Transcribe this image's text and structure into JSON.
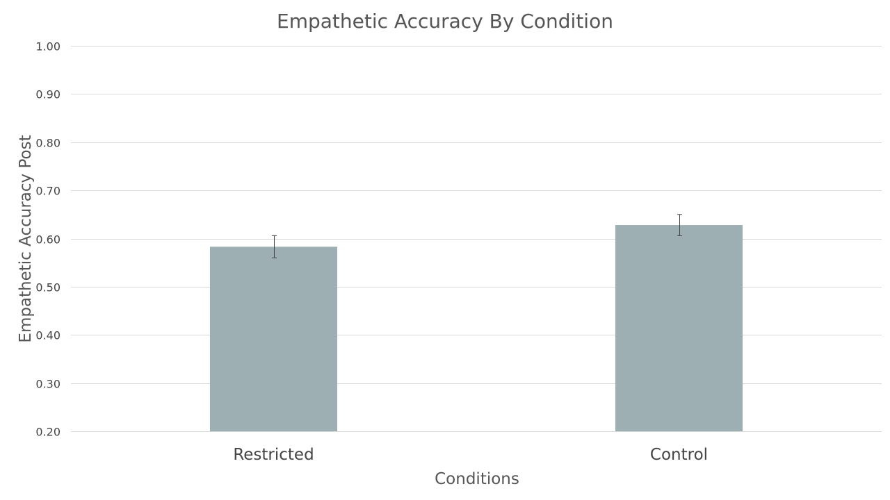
{
  "chart_data": {
    "type": "bar",
    "title": "Empathetic Accuracy By Condition",
    "xlabel": "Conditions",
    "ylabel": "Empathetic Accuracy Post",
    "categories": [
      "Restricted",
      "Control"
    ],
    "values": [
      0.583,
      0.628
    ],
    "error": [
      0.023,
      0.022
    ],
    "ylim": [
      0.2,
      1.0
    ],
    "yticks": [
      0.2,
      0.3,
      0.4,
      0.5,
      0.6,
      0.7,
      0.8,
      0.9,
      1.0
    ],
    "ytick_labels": [
      "0.20",
      "0.30",
      "0.40",
      "0.50",
      "0.60",
      "0.70",
      "0.80",
      "0.90",
      "1.00"
    ],
    "grid": true,
    "legend": "none",
    "bar_color": "#9eafb4",
    "error_bar_color": "#404040"
  }
}
